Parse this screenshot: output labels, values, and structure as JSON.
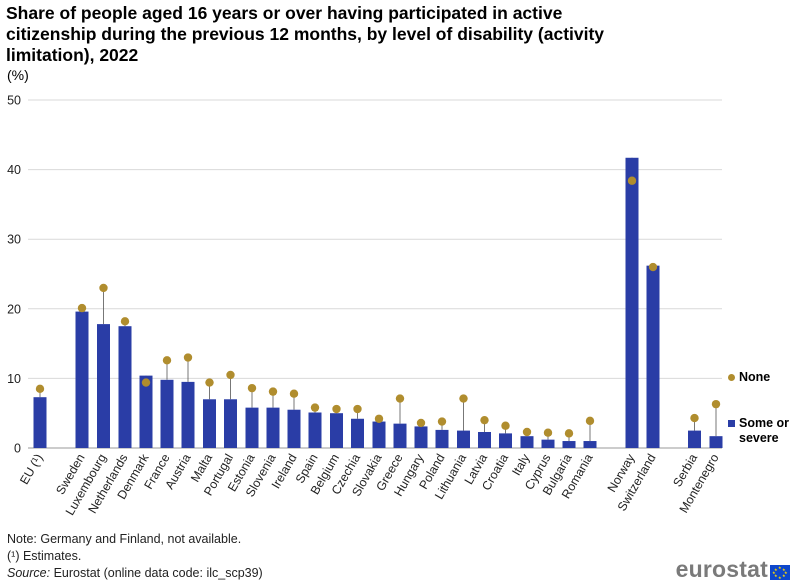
{
  "chart_data": {
    "type": "bar",
    "title": "Share of people aged 16 years or over having participated in active citizenship during the previous 12 months, by level of disability (activity limitation), 2022",
    "unit_label": "(%)",
    "ylim": [
      0,
      50
    ],
    "yticks": [
      0,
      10,
      20,
      30,
      40,
      50
    ],
    "grid": true,
    "legend_position": "right",
    "categories": [
      "EU (¹)",
      "Sweden",
      "Luxembourg",
      "Netherlands",
      "Denmark",
      "France",
      "Austria",
      "Malta",
      "Portugal",
      "Estonia",
      "Slovenia",
      "Ireland",
      "Spain",
      "Belgium",
      "Czechia",
      "Slovakia",
      "Greece",
      "Hungary",
      "Poland",
      "Lithuania",
      "Latvia",
      "Croatia",
      "Italy",
      "Cyprus",
      "Bulgaria",
      "Romania",
      "Norway",
      "Switzerland",
      "Serbia",
      "Montenegro"
    ],
    "series": [
      {
        "name": "Some or severe",
        "type": "bar",
        "color": "#2a3da6",
        "values": [
          7.3,
          19.6,
          17.8,
          17.5,
          10.4,
          9.8,
          9.5,
          7.0,
          7.0,
          5.8,
          5.8,
          5.5,
          5.1,
          5.0,
          4.2,
          3.8,
          3.5,
          3.1,
          2.6,
          2.5,
          2.3,
          2.1,
          1.7,
          1.2,
          1.0,
          1.0,
          41.7,
          26.2,
          2.5,
          1.7
        ]
      },
      {
        "name": "None",
        "type": "dot",
        "color": "#b08d2e",
        "values": [
          8.5,
          20.1,
          23.0,
          18.2,
          9.4,
          12.6,
          13.0,
          9.4,
          10.5,
          8.6,
          8.1,
          7.8,
          5.8,
          5.6,
          5.6,
          4.2,
          7.1,
          3.6,
          3.8,
          7.1,
          4.0,
          3.2,
          2.3,
          2.2,
          2.1,
          3.9,
          38.4,
          26.0,
          4.3,
          6.3
        ]
      }
    ]
  },
  "notes": {
    "note": "Note: Germany and Finland, not available.",
    "estimates": "(¹) Estimates.",
    "source_label": "Source:",
    "source_text": " Eurostat (online data code: ilc_scp39)"
  },
  "logo": {
    "text": "eurostat"
  }
}
